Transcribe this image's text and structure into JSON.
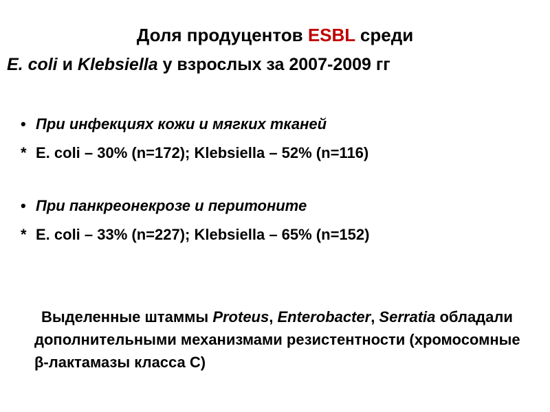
{
  "title": {
    "line1": [
      "Доля продуцентов ",
      "ESBL",
      " среди"
    ],
    "line2": [
      "E. coli",
      " и ",
      "Klebsiella",
      " у взрослых за 2007-2009 гг"
    ]
  },
  "items": [
    {
      "heading": "При инфекциях кожи и мягких тканей",
      "marker": "*",
      "detail": "E. coli – 30% (n=172); Klebsiella – 52% (n=116)"
    },
    {
      "heading": "При панкреонекрозе и перитоните",
      "marker": "*",
      "detail": "E. coli – 33% (n=227); Klebsiella – 65% (n=152)"
    }
  ],
  "note": [
    "Выделенные штаммы ",
    "Proteus",
    ", ",
    "Enterobacter",
    ", ",
    "Serratia",
    " обладали дополнительными механизмами резистентности (хромосомные β-лактамазы класса С)"
  ]
}
